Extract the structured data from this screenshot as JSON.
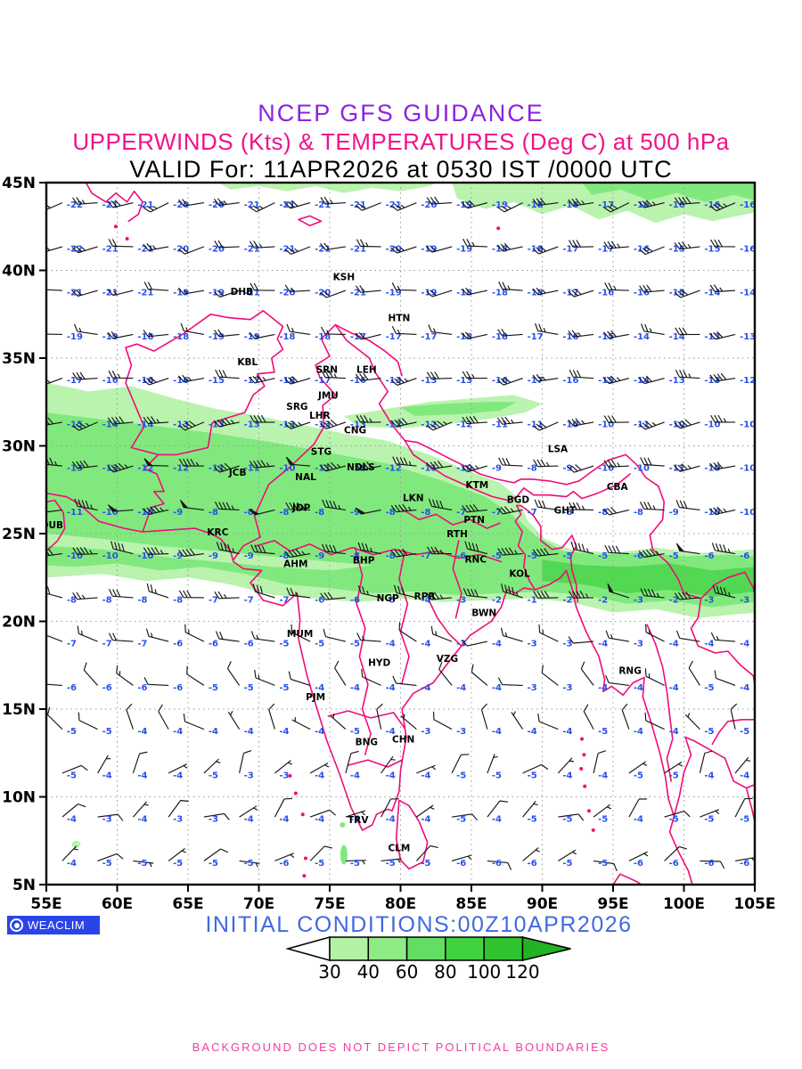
{
  "header": {
    "source_title": "NCEP GFS GUIDANCE",
    "parameter_title": "UPPERWINDS (Kts) & TEMPERATURES (Deg C) at 500 hPa",
    "valid_line": "VALID For: 11APR2026 at 0530 IST /0000 UTC"
  },
  "footer": {
    "logo_text": "WEACLIM",
    "initial_conditions": "INITIAL CONDITIONS:00Z10APR2026",
    "disclaimer": "BACKGROUND DOES NOT DEPICT POLITICAL BOUNDARIES"
  },
  "colors": {
    "title_purple": "#8b22e0",
    "title_magenta": "#f0128a",
    "valid_black": "#000000",
    "temp_blue": "#2850e8",
    "boundary_pink": "#ef0d78",
    "grid_gray": "#9a9a9a",
    "initial_blue": "#4169e1",
    "logo_blue": "#2b44e8",
    "disclaimer_pink": "#ef3f9d",
    "barb_black": "#151515",
    "shade_light": "#b9f3ae",
    "shade_medium": "#81e87e",
    "shade_dark": "#52d852"
  },
  "axes": {
    "lat_ticks": [
      {
        "label": "45N",
        "lat": 45
      },
      {
        "label": "40N",
        "lat": 40
      },
      {
        "label": "35N",
        "lat": 35
      },
      {
        "label": "30N",
        "lat": 30
      },
      {
        "label": "25N",
        "lat": 25
      },
      {
        "label": "20N",
        "lat": 20
      },
      {
        "label": "15N",
        "lat": 15
      },
      {
        "label": "10N",
        "lat": 10
      },
      {
        "label": "5N",
        "lat": 5
      }
    ],
    "lon_ticks": [
      {
        "label": "55E",
        "lon": 55
      },
      {
        "label": "60E",
        "lon": 60
      },
      {
        "label": "65E",
        "lon": 65
      },
      {
        "label": "70E",
        "lon": 70
      },
      {
        "label": "75E",
        "lon": 75
      },
      {
        "label": "80E",
        "lon": 80
      },
      {
        "label": "85E",
        "lon": 85
      },
      {
        "label": "90E",
        "lon": 90
      },
      {
        "label": "95E",
        "lon": 95
      },
      {
        "label": "100E",
        "lon": 100
      },
      {
        "label": "105E",
        "lon": 105
      }
    ]
  },
  "legend": {
    "values": [
      "30",
      "40",
      "60",
      "80",
      "100",
      "120"
    ],
    "segment_colors": [
      "#b2f2a4",
      "#8feb86",
      "#63de63",
      "#41d241",
      "#2fc32f"
    ],
    "underflow_color": "#ffffff",
    "overflow_color": "#23b223"
  },
  "stations": [
    {
      "code": "KSH",
      "lon": 76.0,
      "lat": 39.45
    },
    {
      "code": "DHB",
      "lon": 68.8,
      "lat": 38.6
    },
    {
      "code": "HTN",
      "lon": 79.9,
      "lat": 37.1
    },
    {
      "code": "KBL",
      "lon": 69.2,
      "lat": 34.6
    },
    {
      "code": "SRN",
      "lon": 74.8,
      "lat": 34.15
    },
    {
      "code": "LEH",
      "lon": 77.6,
      "lat": 34.15
    },
    {
      "code": "JMU",
      "lon": 74.9,
      "lat": 32.7
    },
    {
      "code": "SRG",
      "lon": 72.7,
      "lat": 32.05
    },
    {
      "code": "LHR",
      "lon": 74.3,
      "lat": 31.55
    },
    {
      "code": "CNG",
      "lon": 76.8,
      "lat": 30.7
    },
    {
      "code": "STG",
      "lon": 74.4,
      "lat": 29.5
    },
    {
      "code": "NDLS",
      "lon": 77.2,
      "lat": 28.6
    },
    {
      "code": "JCB",
      "lon": 68.5,
      "lat": 28.3
    },
    {
      "code": "NAL",
      "lon": 73.3,
      "lat": 28.05
    },
    {
      "code": "JDP",
      "lon": 73.0,
      "lat": 26.3
    },
    {
      "code": "LKN",
      "lon": 80.9,
      "lat": 26.85
    },
    {
      "code": "KTM",
      "lon": 85.4,
      "lat": 27.6
    },
    {
      "code": "LSA",
      "lon": 91.1,
      "lat": 29.65
    },
    {
      "code": "BGD",
      "lon": 88.3,
      "lat": 26.75
    },
    {
      "code": "GHT",
      "lon": 91.6,
      "lat": 26.15
    },
    {
      "code": "CBA",
      "lon": 95.3,
      "lat": 27.5
    },
    {
      "code": "DUB",
      "lon": 55.4,
      "lat": 25.3
    },
    {
      "code": "KRC",
      "lon": 67.1,
      "lat": 24.9
    },
    {
      "code": "PTN",
      "lon": 85.2,
      "lat": 25.6
    },
    {
      "code": "RTH",
      "lon": 84.0,
      "lat": 24.8
    },
    {
      "code": "RNC",
      "lon": 85.3,
      "lat": 23.35
    },
    {
      "code": "KOL",
      "lon": 88.4,
      "lat": 22.55
    },
    {
      "code": "AHM",
      "lon": 72.6,
      "lat": 23.1
    },
    {
      "code": "BHP",
      "lon": 77.4,
      "lat": 23.3
    },
    {
      "code": "NGP",
      "lon": 79.1,
      "lat": 21.15
    },
    {
      "code": "RPR",
      "lon": 81.7,
      "lat": 21.25
    },
    {
      "code": "BWN",
      "lon": 85.9,
      "lat": 20.3
    },
    {
      "code": "MUM",
      "lon": 72.9,
      "lat": 19.1
    },
    {
      "code": "HYD",
      "lon": 78.5,
      "lat": 17.45
    },
    {
      "code": "VZG",
      "lon": 83.3,
      "lat": 17.7
    },
    {
      "code": "RNG",
      "lon": 96.2,
      "lat": 17.0
    },
    {
      "code": "PJM",
      "lon": 74.0,
      "lat": 15.5
    },
    {
      "code": "CHN",
      "lon": 80.2,
      "lat": 13.1
    },
    {
      "code": "BNG",
      "lon": 77.6,
      "lat": 12.95
    },
    {
      "code": "TRV",
      "lon": 77.0,
      "lat": 8.5
    },
    {
      "code": "CLM",
      "lon": 79.9,
      "lat": 6.9
    }
  ],
  "chart_data": {
    "type": "heatmap",
    "title": "NCEP GFS 500 hPa upper winds (kts) and temperatures (deg C)",
    "valid": "11APR2026 0530 IST / 0000 UTC",
    "initial": "00Z 10APR2026",
    "lon_range": [
      55,
      105
    ],
    "lat_range": [
      5,
      45
    ],
    "shading_legend_kts": [
      30,
      40,
      60,
      80,
      100,
      120
    ],
    "lons": [
      56.25,
      58.75,
      61.25,
      63.75,
      66.25,
      68.75,
      71.25,
      73.75,
      76.25,
      78.75,
      81.25,
      83.75,
      86.25,
      88.75,
      91.25,
      93.75,
      96.25,
      98.75,
      101.25,
      103.75
    ],
    "rows": [
      {
        "lat": 43.75,
        "dir": 255,
        "temps": [
          -22,
          -21,
          -21,
          -20,
          -20,
          -21,
          -21,
          -21,
          -21,
          -21,
          -20,
          -19,
          -19,
          -18,
          -18,
          -17,
          -16,
          -16,
          -16,
          -16
        ],
        "spd": [
          30,
          25,
          30,
          25,
          20,
          25,
          25,
          30,
          25,
          20,
          25,
          30,
          30,
          25,
          30,
          35,
          30,
          35,
          40,
          35
        ]
      },
      {
        "lat": 41.25,
        "dir": 260,
        "temps": [
          -22,
          -21,
          -21,
          -20,
          -20,
          -21,
          -21,
          -21,
          -21,
          -20,
          -19,
          -19,
          -18,
          -18,
          -17,
          -17,
          -16,
          -15,
          -15,
          -16
        ],
        "spd": [
          25,
          25,
          20,
          25,
          20,
          20,
          25,
          25,
          20,
          25,
          25,
          20,
          25,
          30,
          30,
          30,
          35,
          30,
          35,
          30
        ]
      },
      {
        "lat": 38.75,
        "dir": 262,
        "temps": [
          -21,
          -21,
          -21,
          -19,
          -19,
          -21,
          -20,
          -20,
          -21,
          -19,
          -19,
          -18,
          -18,
          -18,
          -17,
          -16,
          -16,
          -15,
          -14,
          -14
        ],
        "spd": [
          20,
          20,
          15,
          20,
          15,
          20,
          20,
          15,
          20,
          20,
          15,
          20,
          20,
          25,
          25,
          30,
          25,
          30,
          30,
          25
        ]
      },
      {
        "lat": 36.25,
        "dir": 268,
        "temps": [
          -19,
          -19,
          -18,
          -18,
          -19,
          -19,
          -18,
          -18,
          -17,
          -17,
          -17,
          -18,
          -18,
          -17,
          -16,
          -15,
          -14,
          -14,
          -13,
          -13
        ],
        "spd": [
          15,
          15,
          20,
          15,
          15,
          20,
          15,
          15,
          15,
          20,
          15,
          15,
          20,
          20,
          25,
          25,
          30,
          25,
          30,
          30
        ]
      },
      {
        "lat": 33.75,
        "dir": 262,
        "temps": [
          -17,
          -16,
          -16,
          -16,
          -15,
          -17,
          -18,
          -17,
          -16,
          -13,
          -13,
          -13,
          -16,
          -17,
          -16,
          -15,
          -14,
          -13,
          -13,
          -12
        ],
        "spd": [
          25,
          30,
          25,
          30,
          25,
          30,
          35,
          30,
          35,
          30,
          35,
          30,
          25,
          30,
          25,
          30,
          35,
          30,
          35,
          40
        ]
      },
      {
        "lat": 31.25,
        "dir": 258,
        "temps": [
          -15,
          -14,
          -14,
          -13,
          -13,
          -13,
          -13,
          -13,
          -13,
          -12,
          -12,
          -12,
          -11,
          -11,
          -10,
          -10,
          -11,
          -10,
          -10,
          -10
        ],
        "spd": [
          40,
          35,
          40,
          35,
          40,
          45,
          40,
          35,
          40,
          35,
          40,
          45,
          40,
          35,
          30,
          35,
          30,
          35,
          40,
          35
        ]
      },
      {
        "lat": 28.75,
        "dir": 264,
        "temps": [
          -13,
          -13,
          -12,
          -12,
          -11,
          -11,
          -10,
          -11,
          -12,
          -12,
          -11,
          -10,
          -9,
          -8,
          -9,
          -10,
          -10,
          -11,
          -10,
          -10
        ],
        "spd": [
          45,
          40,
          45,
          50,
          45,
          40,
          45,
          50,
          45,
          40,
          45,
          40,
          35,
          30,
          35,
          30,
          35,
          30,
          35,
          30
        ]
      },
      {
        "lat": 26.25,
        "dir": 268,
        "temps": [
          -11,
          -10,
          -10,
          -9,
          -8,
          -8,
          -8,
          -8,
          -9,
          -8,
          -8,
          -7,
          -7,
          -7,
          -8,
          -8,
          -8,
          -9,
          -10,
          -10
        ],
        "spd": [
          50,
          45,
          50,
          45,
          50,
          45,
          50,
          45,
          45,
          50,
          45,
          40,
          40,
          35,
          30,
          35,
          30,
          35,
          30,
          35
        ]
      },
      {
        "lat": 23.75,
        "dir": 272,
        "temps": [
          -10,
          -10,
          -10,
          -9,
          -9,
          -9,
          -8,
          -9,
          -8,
          -8,
          -7,
          -6,
          -5,
          -5,
          -5,
          -5,
          -6,
          -5,
          -6,
          -6
        ],
        "spd": [
          40,
          45,
          40,
          45,
          40,
          45,
          40,
          45,
          40,
          35,
          40,
          35,
          40,
          45,
          40,
          45,
          40,
          45,
          50,
          45
        ]
      },
      {
        "lat": 21.25,
        "dir": 276,
        "temps": [
          -8,
          -8,
          -8,
          -8,
          -7,
          -7,
          -7,
          -6,
          -6,
          -5,
          -4,
          -3,
          -2,
          -1,
          -2,
          -2,
          -3,
          -2,
          -3,
          -3
        ],
        "spd": [
          30,
          25,
          30,
          25,
          30,
          25,
          30,
          25,
          30,
          25,
          30,
          35,
          40,
          45,
          40,
          45,
          50,
          45,
          40,
          45
        ]
      },
      {
        "lat": 18.75,
        "dir": 285,
        "temps": [
          -7,
          -7,
          -7,
          -6,
          -6,
          -6,
          -5,
          -5,
          -5,
          -4,
          -4,
          -3,
          -4,
          -3,
          -3,
          -4,
          -3,
          -4,
          -4,
          -4
        ],
        "spd": [
          15,
          15,
          20,
          15,
          15,
          20,
          15,
          15,
          10,
          15,
          10,
          15,
          10,
          15,
          15,
          10,
          15,
          15,
          10,
          15
        ]
      },
      {
        "lat": 16.25,
        "dir": 300,
        "temps": [
          -6,
          -6,
          -6,
          -6,
          -5,
          -5,
          -5,
          -4,
          -4,
          -4,
          -4,
          -4,
          -4,
          -3,
          -3,
          -4,
          -4,
          -4,
          -5,
          -4
        ],
        "spd": [
          10,
          10,
          15,
          10,
          10,
          10,
          15,
          10,
          10,
          10,
          10,
          10,
          10,
          10,
          10,
          10,
          10,
          15,
          10,
          10
        ]
      },
      {
        "lat": 13.75,
        "dir": 320,
        "temps": [
          -5,
          -5,
          -4,
          -4,
          -4,
          -4,
          -4,
          -4,
          -5,
          -4,
          -3,
          -3,
          -4,
          -4,
          -4,
          -5,
          -4,
          -4,
          -5,
          -5
        ],
        "spd": [
          10,
          10,
          10,
          10,
          10,
          5,
          10,
          5,
          5,
          10,
          5,
          10,
          10,
          5,
          10,
          10,
          10,
          10,
          5,
          10
        ]
      },
      {
        "lat": 11.25,
        "dir": 40,
        "temps": [
          -5,
          -4,
          -4,
          -4,
          -5,
          -3,
          -3,
          -4,
          -4,
          -4,
          -4,
          -5,
          -5,
          -5,
          -4,
          -4,
          -5,
          -5,
          -4,
          -4
        ],
        "spd": [
          10,
          5,
          10,
          5,
          5,
          10,
          5,
          5,
          10,
          5,
          5,
          10,
          5,
          10,
          5,
          10,
          5,
          5,
          10,
          5
        ]
      },
      {
        "lat": 8.75,
        "dir": 55,
        "temps": [
          -4,
          -3,
          -4,
          -3,
          -3,
          -4,
          -4,
          -4,
          -5,
          -4,
          -4,
          -5,
          -4,
          -5,
          -5,
          -5,
          -4,
          -5,
          -5,
          -5
        ],
        "spd": [
          10,
          10,
          5,
          10,
          10,
          5,
          10,
          10,
          5,
          10,
          5,
          10,
          10,
          5,
          10,
          5,
          10,
          10,
          5,
          10
        ]
      },
      {
        "lat": 6.25,
        "dir": 70,
        "temps": [
          -4,
          -5,
          -5,
          -5,
          -5,
          -5,
          -6,
          -5,
          -5,
          -5,
          -5,
          -6,
          -6,
          -6,
          -5,
          -5,
          -6,
          -6,
          -6,
          -6
        ],
        "spd": [
          5,
          10,
          5,
          5,
          10,
          5,
          5,
          10,
          5,
          5,
          10,
          5,
          10,
          5,
          5,
          10,
          5,
          10,
          10,
          5
        ]
      }
    ]
  }
}
